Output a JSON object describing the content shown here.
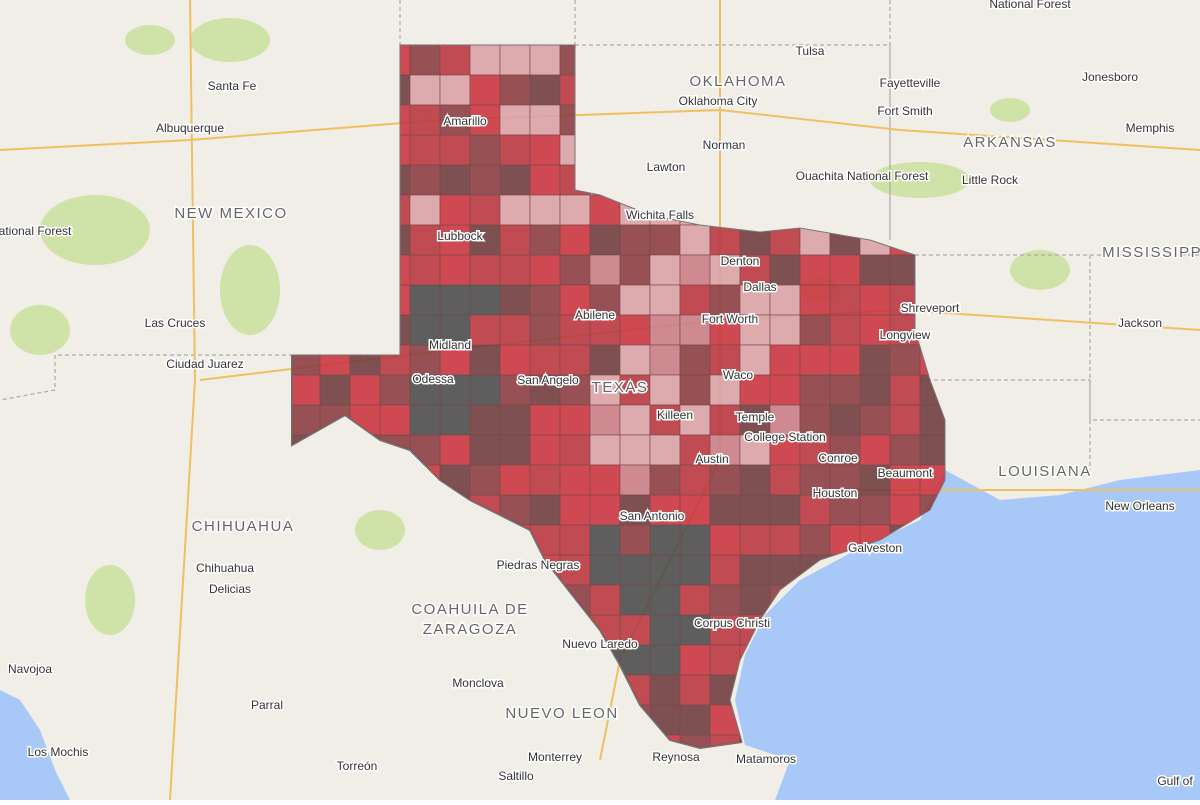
{
  "map": {
    "labels": [
      {
        "text": "National Forest"
      },
      {
        "text": "Tulsa"
      },
      {
        "text": "OKLAHOMA"
      },
      {
        "text": "Santa Fe"
      },
      {
        "text": "Fayetteville"
      },
      {
        "text": "Jonesboro"
      },
      {
        "text": "Oklahoma City"
      },
      {
        "text": "Albuquerque"
      },
      {
        "text": "Amarillo"
      },
      {
        "text": "Fort Smith"
      },
      {
        "text": "Memphis"
      },
      {
        "text": "Norman"
      },
      {
        "text": "ARKANSAS"
      },
      {
        "text": "Lawton"
      },
      {
        "text": "Ouachita National Forest"
      },
      {
        "text": "Little Rock"
      },
      {
        "text": "NEW MEXICO"
      },
      {
        "text": "Wichita Falls"
      },
      {
        "text": "ational Forest"
      },
      {
        "text": "MISSISSIPPI"
      },
      {
        "text": "Lubbock"
      },
      {
        "text": "Denton"
      },
      {
        "text": "Dallas"
      },
      {
        "text": "Abilene"
      },
      {
        "text": "Fort Worth"
      },
      {
        "text": "Shreveport"
      },
      {
        "text": "Las Cruces"
      },
      {
        "text": "Longview"
      },
      {
        "text": "Jackson"
      },
      {
        "text": "Midland"
      },
      {
        "text": "Ciudad Juarez"
      },
      {
        "text": "Odessa"
      },
      {
        "text": "San Angelo"
      },
      {
        "text": "TEXAS"
      },
      {
        "text": "Waco"
      },
      {
        "text": "Killeen"
      },
      {
        "text": "Temple"
      },
      {
        "text": "College Station"
      },
      {
        "text": "Conroe"
      },
      {
        "text": "LOUISIANA"
      },
      {
        "text": "Beaumont"
      },
      {
        "text": "Austin"
      },
      {
        "text": "Houston"
      },
      {
        "text": "New Orleans"
      },
      {
        "text": "San Antonio"
      },
      {
        "text": "Galveston"
      },
      {
        "text": "CHIHUAHUA"
      },
      {
        "text": "Chihuahua"
      },
      {
        "text": "Piedras Negras"
      },
      {
        "text": "Delicias"
      },
      {
        "text": "COAHUILA DE"
      },
      {
        "text": "ZARAGOZA"
      },
      {
        "text": "Corpus Christi"
      },
      {
        "text": "Nuevo Laredo"
      },
      {
        "text": "Parral"
      },
      {
        "text": "Monclova"
      },
      {
        "text": "NUEVO LEON"
      },
      {
        "text": "Los Mochis"
      },
      {
        "text": "Torreón"
      },
      {
        "text": "Monterrey"
      },
      {
        "text": "Saltillo"
      },
      {
        "text": "Reynosa"
      },
      {
        "text": "Matamoros"
      },
      {
        "text": "Gulf of"
      },
      {
        "text": "Navojoa"
      }
    ]
  }
}
